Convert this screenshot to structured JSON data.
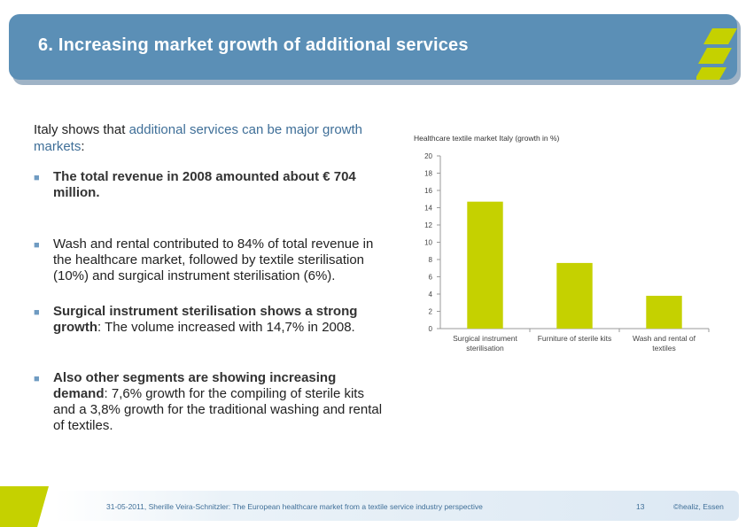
{
  "header": {
    "title": "6.   Increasing market growth of additional services"
  },
  "intro": {
    "pre": "Italy shows that ",
    "highlight": "additional services can be major growth markets",
    "post": ":"
  },
  "bullets": [
    {
      "strong": "The total revenue in 2008 amounted about € 704 million.",
      "rest": ""
    },
    {
      "strong": "",
      "rest": "Wash and rental contributed to 84% of total revenue in the healthcare market, followed by textile sterilisation (10%) and surgical instrument sterilisation (6%)."
    },
    {
      "strong": "Surgical instrument sterilisation shows a strong growth",
      "rest": ": The volume increased with 14,7% in 2008."
    },
    {
      "strong": "Also other segments are showing increasing demand",
      "rest": ": 7,6% growth for the compiling of sterile kits and a 3,8% growth for the traditional washing and rental of textiles."
    }
  ],
  "colors": {
    "header": "#5b8fb6",
    "bars": "#c5d100",
    "accent_green": "#c5d100",
    "text_blue": "#3f6f98"
  },
  "chart_data": {
    "type": "bar",
    "title": "Healthcare textile market Italy (growth in %)",
    "categories": [
      [
        "Surgical instrument",
        "sterilisation"
      ],
      [
        "Furniture of sterile kits"
      ],
      [
        "Wash and rental of",
        "textiles"
      ]
    ],
    "values": [
      14.7,
      7.6,
      3.8
    ],
    "yticks": [
      0,
      2,
      4,
      6,
      8,
      10,
      12,
      14,
      16,
      18,
      20
    ],
    "ylim": [
      0,
      20
    ],
    "xlabel": "",
    "ylabel": ""
  },
  "footer": {
    "text": "31-05-2011, Sherille Veira-Schnitzler: The European healthcare market from a textile service industry perspective",
    "page": "13",
    "copyright": "©healiz, Essen"
  }
}
